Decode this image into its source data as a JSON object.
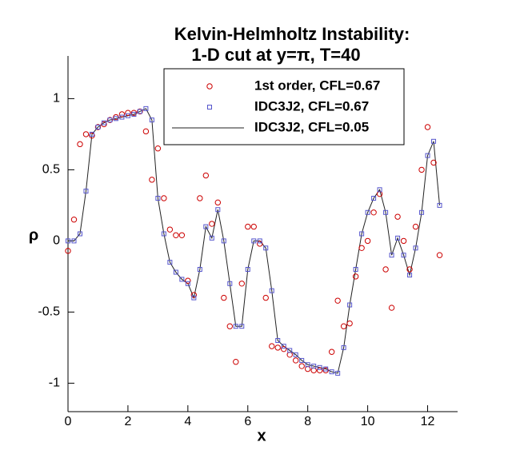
{
  "chart_data": {
    "type": "scatter",
    "title": [
      "Kelvin-Helmholtz Instability:",
      "1-D cut at y=π, T=40"
    ],
    "x_label": "x",
    "y_label": "ρ",
    "x": [
      0,
      0.2,
      0.4,
      0.6,
      0.8,
      1.0,
      1.2,
      1.4,
      1.6,
      1.8,
      2.0,
      2.2,
      2.4,
      2.6,
      2.8,
      3.0,
      3.2,
      3.4,
      3.6,
      3.8,
      4.0,
      4.2,
      4.4,
      4.6,
      4.8,
      5.0,
      5.2,
      5.4,
      5.6,
      5.8,
      6.0,
      6.2,
      6.4,
      6.6,
      6.8,
      7.0,
      7.2,
      7.4,
      7.6,
      7.8,
      8.0,
      8.2,
      8.4,
      8.6,
      8.8,
      9.0,
      9.2,
      9.4,
      9.6,
      9.8,
      10.0,
      10.2,
      10.4,
      10.6,
      10.8,
      11.0,
      11.2,
      11.4,
      11.6,
      11.8,
      12.0,
      12.2,
      12.4
    ],
    "series": [
      {
        "name": "1st order, CFL=0.67",
        "color": "#cc0000",
        "marker": "circle",
        "values": [
          -0.07,
          0.15,
          0.68,
          0.75,
          0.74,
          0.8,
          0.82,
          0.85,
          0.87,
          0.89,
          0.9,
          0.9,
          0.91,
          0.77,
          0.43,
          0.65,
          0.3,
          0.08,
          0.04,
          0.04,
          -0.28,
          -0.38,
          0.3,
          0.46,
          0.12,
          0.27,
          -0.4,
          -0.6,
          -0.85,
          -0.3,
          0.1,
          0.1,
          -0.02,
          -0.4,
          -0.74,
          -0.75,
          -0.76,
          -0.8,
          -0.84,
          -0.88,
          -0.9,
          -0.91,
          -0.91,
          -0.91,
          -0.78,
          -0.42,
          -0.6,
          -0.58,
          -0.25,
          -0.05,
          0.0,
          0.2,
          0.33,
          -0.2,
          -0.47,
          0.17,
          0.0,
          -0.2,
          0.1,
          0.5,
          0.8,
          0.55,
          -0.1
        ]
      },
      {
        "name": "IDC3J2, CFL=0.67",
        "color": "#5555cc",
        "marker": "square",
        "values": [
          0.0,
          0.0,
          0.05,
          0.35,
          0.75,
          0.8,
          0.83,
          0.85,
          0.86,
          0.87,
          0.88,
          0.89,
          0.91,
          0.93,
          0.85,
          0.3,
          0.05,
          -0.15,
          -0.22,
          -0.27,
          -0.3,
          -0.4,
          -0.2,
          0.1,
          0.02,
          0.22,
          0.0,
          -0.3,
          -0.6,
          -0.6,
          -0.2,
          0.0,
          0.0,
          -0.05,
          -0.35,
          -0.7,
          -0.74,
          -0.77,
          -0.8,
          -0.84,
          -0.87,
          -0.88,
          -0.89,
          -0.9,
          -0.92,
          -0.93,
          -0.75,
          -0.45,
          -0.2,
          0.05,
          0.2,
          0.3,
          0.36,
          0.2,
          -0.1,
          0.02,
          -0.1,
          -0.24,
          -0.05,
          0.2,
          0.6,
          0.7,
          0.25
        ]
      },
      {
        "name": "IDC3J2, CFL=0.05",
        "color": "#222222",
        "marker": "line",
        "values": [
          0.0,
          0.0,
          0.05,
          0.35,
          0.75,
          0.8,
          0.83,
          0.85,
          0.86,
          0.87,
          0.88,
          0.89,
          0.91,
          0.93,
          0.85,
          0.3,
          0.05,
          -0.15,
          -0.22,
          -0.27,
          -0.3,
          -0.4,
          -0.2,
          0.1,
          0.02,
          0.22,
          0.0,
          -0.3,
          -0.6,
          -0.6,
          -0.2,
          0.0,
          0.0,
          -0.05,
          -0.35,
          -0.7,
          -0.74,
          -0.77,
          -0.8,
          -0.84,
          -0.87,
          -0.88,
          -0.89,
          -0.9,
          -0.92,
          -0.93,
          -0.75,
          -0.45,
          -0.2,
          0.05,
          0.2,
          0.3,
          0.36,
          0.2,
          -0.1,
          0.02,
          -0.1,
          -0.24,
          -0.05,
          0.2,
          0.6,
          0.7,
          0.25
        ]
      }
    ],
    "xlim": [
      0,
      13
    ],
    "xticks": [
      0,
      2,
      4,
      6,
      8,
      10,
      12
    ],
    "ylim": [
      -1.2,
      1.3
    ],
    "yticks": [
      -1,
      -0.5,
      0,
      0.5,
      1
    ],
    "legend": "top-right"
  }
}
